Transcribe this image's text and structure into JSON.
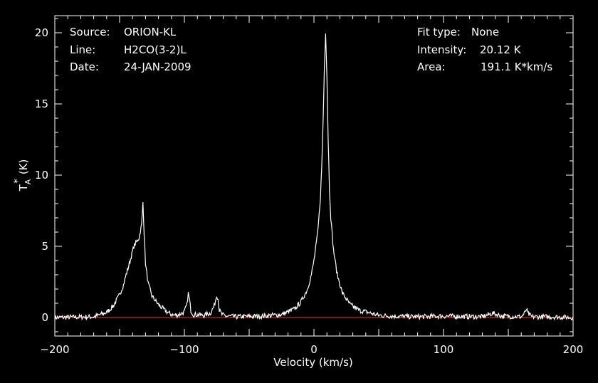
{
  "info_left": [
    {
      "key": "Source:",
      "value": "ORION-KL"
    },
    {
      "key": "Line:",
      "value": "H2CO(3-2)L"
    },
    {
      "key": "Date:",
      "value": "24-JAN-2009"
    }
  ],
  "info_right": [
    {
      "key": "Fit type:",
      "value": "None"
    },
    {
      "key": "Intensity:",
      "value": "20.12 K"
    },
    {
      "key": "Area:",
      "value": "191.1 K*km/s"
    }
  ],
  "chart_data": {
    "type": "line",
    "xlabel": "Velocity (km/s)",
    "ylabel": "T",
    "ylabel_sub": "A",
    "ylabel_sup": "*",
    "ylabel_unit": "(K)",
    "xlim": [
      -200,
      200
    ],
    "ylim": [
      -1.3,
      21.2
    ],
    "xticks": [
      -200,
      -100,
      0,
      100,
      200
    ],
    "yticks": [
      0,
      5,
      10,
      15,
      20
    ],
    "x_tick_labels": [
      "−200",
      "−100",
      "0",
      "100",
      "200"
    ],
    "y_tick_labels": [
      "0",
      "5",
      "10",
      "15",
      "20"
    ],
    "baseline": 0,
    "grid": false,
    "colors": {
      "background": "#000000",
      "axes": "#ffffff",
      "spectrum": "#ffffff",
      "baseline": "#ff3030"
    },
    "series": [
      {
        "x": [
          -200,
          -170,
          -160,
          -155,
          -150,
          -147,
          -145,
          -143,
          -141,
          -139,
          -137,
          -135,
          -133,
          -132,
          -131,
          -130,
          -128,
          -125,
          -120,
          -115,
          -112,
          -108,
          -104,
          -100,
          -98,
          -97,
          -96,
          -95,
          -93,
          -90,
          -85,
          -80,
          -77,
          -75,
          -74,
          -73,
          -71,
          -68,
          -60,
          -40,
          -25,
          -15,
          -10,
          -5,
          -2,
          0,
          2,
          3,
          4,
          5,
          6,
          7,
          8,
          9,
          10,
          11,
          12,
          13,
          15,
          18,
          22,
          28,
          35,
          40,
          50,
          60,
          80,
          100,
          130,
          138,
          145,
          160,
          163,
          164,
          165,
          168,
          180,
          200
        ],
        "y": [
          0,
          0.05,
          0.35,
          0.8,
          1.6,
          2.3,
          3.0,
          3.6,
          4.3,
          5.0,
          5.3,
          5.6,
          6.5,
          8.1,
          5.8,
          3.8,
          2.4,
          1.5,
          0.9,
          0.5,
          0.3,
          0.15,
          0.2,
          0.4,
          0.9,
          1.7,
          1.2,
          0.5,
          0.2,
          0.2,
          0.15,
          0.3,
          0.8,
          1.6,
          1.3,
          0.5,
          0.2,
          0.1,
          0.05,
          0.1,
          0.2,
          0.6,
          1.1,
          2.0,
          3.0,
          4.0,
          5.3,
          6.1,
          7.2,
          8.5,
          10.5,
          13.5,
          17.5,
          20.1,
          17.0,
          12.5,
          9.0,
          7.0,
          4.8,
          3.0,
          1.7,
          0.9,
          0.5,
          0.4,
          0.15,
          0.1,
          0.05,
          0.1,
          0.05,
          0.3,
          0.1,
          0.05,
          0.35,
          0.6,
          0.3,
          0.05,
          0.05,
          0
        ]
      }
    ]
  }
}
